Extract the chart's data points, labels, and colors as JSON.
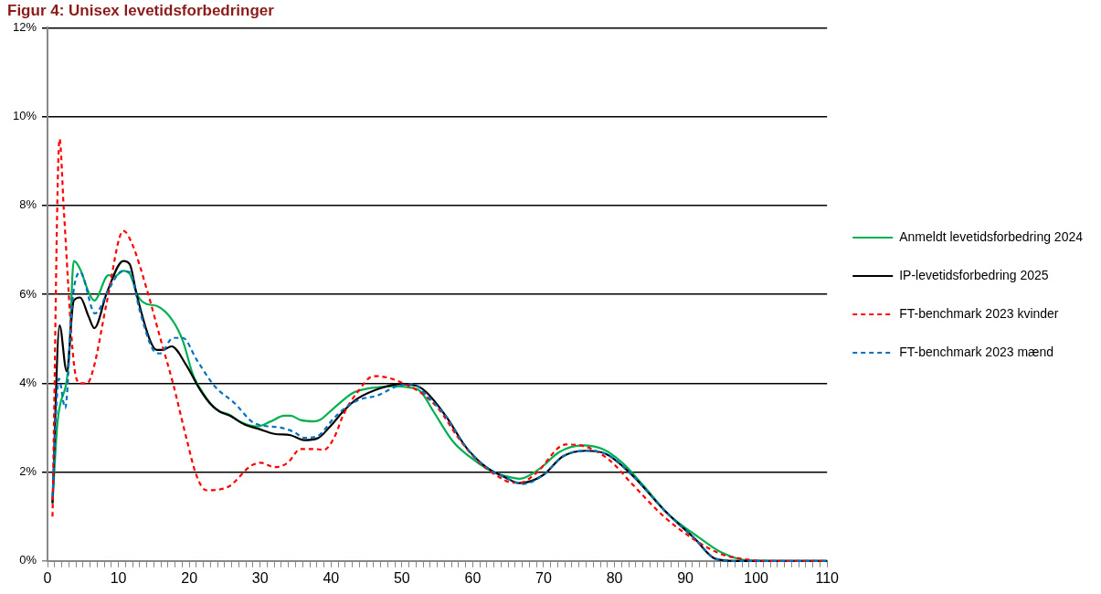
{
  "chart_data": {
    "type": "line",
    "title": "Figur 4: Unisex levetidsforbedringer",
    "xlim": [
      0,
      110
    ],
    "ylim": [
      0,
      12
    ],
    "yticks": [
      {
        "value": 0,
        "label": "0%"
      },
      {
        "value": 2,
        "label": "2%"
      },
      {
        "value": 4,
        "label": "4%"
      },
      {
        "value": 6,
        "label": "6%"
      },
      {
        "value": 8,
        "label": "8%"
      },
      {
        "value": 10,
        "label": "10%"
      },
      {
        "value": 12,
        "label": "12%"
      }
    ],
    "xticks": [
      0,
      {
        "value": 1,
        "label": null
      },
      {
        "value": 2,
        "label": null
      },
      {
        "value": 3,
        "label": null
      },
      {
        "value": 4,
        "label": null
      },
      {
        "value": 5,
        "label": null
      },
      {
        "value": 6,
        "label": null
      },
      {
        "value": 7,
        "label": null
      },
      {
        "value": 8,
        "label": null
      },
      {
        "value": 9,
        "label": null
      },
      10,
      {
        "value": 11,
        "label": null
      },
      {
        "value": 12,
        "label": null
      },
      {
        "value": 13,
        "label": null
      },
      {
        "value": 14,
        "label": null
      },
      {
        "value": 15,
        "label": null
      },
      {
        "value": 16,
        "label": null
      },
      {
        "value": 17,
        "label": null
      },
      {
        "value": 18,
        "label": null
      },
      {
        "value": 19,
        "label": null
      },
      20,
      {
        "value": 21,
        "label": null
      },
      {
        "value": 22,
        "label": null
      },
      {
        "value": 23,
        "label": null
      },
      {
        "value": 24,
        "label": null
      },
      {
        "value": 25,
        "label": null
      },
      {
        "value": 26,
        "label": null
      },
      {
        "value": 27,
        "label": null
      },
      {
        "value": 28,
        "label": null
      },
      {
        "value": 29,
        "label": null
      },
      30,
      {
        "value": 31,
        "label": null
      },
      {
        "value": 32,
        "label": null
      },
      {
        "value": 33,
        "label": null
      },
      {
        "value": 34,
        "label": null
      },
      {
        "value": 35,
        "label": null
      },
      {
        "value": 36,
        "label": null
      },
      {
        "value": 37,
        "label": null
      },
      {
        "value": 38,
        "label": null
      },
      {
        "value": 39,
        "label": null
      },
      40,
      {
        "value": 41,
        "label": null
      },
      {
        "value": 42,
        "label": null
      },
      {
        "value": 43,
        "label": null
      },
      {
        "value": 44,
        "label": null
      },
      {
        "value": 45,
        "label": null
      },
      {
        "value": 46,
        "label": null
      },
      {
        "value": 47,
        "label": null
      },
      {
        "value": 48,
        "label": null
      },
      {
        "value": 49,
        "label": null
      },
      50,
      {
        "value": 51,
        "label": null
      },
      {
        "value": 52,
        "label": null
      },
      {
        "value": 53,
        "label": null
      },
      {
        "value": 54,
        "label": null
      },
      {
        "value": 55,
        "label": null
      },
      {
        "value": 56,
        "label": null
      },
      {
        "value": 57,
        "label": null
      },
      {
        "value": 58,
        "label": null
      },
      {
        "value": 59,
        "label": null
      },
      60,
      {
        "value": 61,
        "label": null
      },
      {
        "value": 62,
        "label": null
      },
      {
        "value": 63,
        "label": null
      },
      {
        "value": 64,
        "label": null
      },
      {
        "value": 65,
        "label": null
      },
      {
        "value": 66,
        "label": null
      },
      {
        "value": 67,
        "label": null
      },
      {
        "value": 68,
        "label": null
      },
      {
        "value": 69,
        "label": null
      },
      70,
      {
        "value": 71,
        "label": null
      },
      {
        "value": 72,
        "label": null
      },
      {
        "value": 73,
        "label": null
      },
      {
        "value": 74,
        "label": null
      },
      {
        "value": 75,
        "label": null
      },
      {
        "value": 76,
        "label": null
      },
      {
        "value": 77,
        "label": null
      },
      {
        "value": 78,
        "label": null
      },
      {
        "value": 79,
        "label": null
      },
      80,
      {
        "value": 81,
        "label": null
      },
      {
        "value": 82,
        "label": null
      },
      {
        "value": 83,
        "label": null
      },
      {
        "value": 84,
        "label": null
      },
      {
        "value": 85,
        "label": null
      },
      {
        "value": 86,
        "label": null
      },
      {
        "value": 87,
        "label": null
      },
      {
        "value": 88,
        "label": null
      },
      {
        "value": 89,
        "label": null
      },
      90,
      {
        "value": 91,
        "label": null
      },
      {
        "value": 92,
        "label": null
      },
      {
        "value": 93,
        "label": null
      },
      {
        "value": 94,
        "label": null
      },
      {
        "value": 95,
        "label": null
      },
      {
        "value": 96,
        "label": null
      },
      {
        "value": 97,
        "label": null
      },
      {
        "value": 98,
        "label": null
      },
      {
        "value": 99,
        "label": null
      },
      100,
      {
        "value": 101,
        "label": null
      },
      {
        "value": 102,
        "label": null
      },
      {
        "value": 103,
        "label": null
      },
      {
        "value": 104,
        "label": null
      },
      {
        "value": 105,
        "label": null
      },
      {
        "value": 106,
        "label": null
      },
      {
        "value": 107,
        "label": null
      },
      {
        "value": 108,
        "label": null
      },
      {
        "value": 109,
        "label": null
      },
      110
    ],
    "grid": "y",
    "legend": "right",
    "marker": "none",
    "series": [
      {
        "name": "Anmeldt levetidsforbedring 2024",
        "color": "#00b050",
        "line_style": "solid",
        "x": [
          0.7,
          1.4,
          3,
          3.7,
          4.6,
          5.8,
          6.6,
          8.6,
          9.5,
          10.7,
          11.6,
          12.8,
          14,
          15.4,
          17.7,
          19.1,
          20.5,
          21.9,
          23.8,
          25.7,
          27.1,
          29.6,
          31.5,
          33.4,
          34.3,
          35.7,
          37.6,
          38.5,
          40.4,
          43.2,
          45.6,
          48.8,
          50.7,
          52.6,
          54.4,
          57.2,
          60.1,
          62.9,
          65.7,
          66.6,
          69.4,
          72.2,
          75.5,
          78.3,
          81.1,
          83.9,
          87.7,
          91.9,
          95.1,
          98.9,
          105,
          110
        ],
        "values": [
          1.3,
          3.1,
          4.5,
          6.75,
          6.57,
          6.05,
          5.86,
          6.43,
          6.41,
          6.53,
          6.46,
          5.95,
          5.78,
          5.74,
          5.4,
          4.95,
          4.2,
          3.79,
          3.41,
          3.29,
          3.14,
          3.03,
          3.14,
          3.27,
          3.27,
          3.17,
          3.14,
          3.18,
          3.44,
          3.79,
          3.89,
          3.93,
          3.91,
          3.82,
          3.38,
          2.69,
          2.28,
          2,
          1.87,
          1.85,
          2.07,
          2.45,
          2.6,
          2.52,
          2.21,
          1.73,
          1.04,
          0.53,
          0.19,
          0.01,
          0,
          0
        ]
      },
      {
        "name": "IP-levetidsforbedring 2025",
        "color": "#000000",
        "line_style": "solid",
        "x": [
          0.7,
          1.7,
          2.7,
          3.7,
          4.6,
          5.8,
          6.6,
          8.4,
          10.7,
          11.6,
          12.6,
          14.5,
          15.4,
          16.3,
          17.5,
          19.6,
          21.5,
          22.9,
          24.3,
          25.7,
          27.8,
          29.6,
          32,
          34.3,
          36.2,
          38.1,
          39.9,
          41.8,
          43.7,
          47,
          49.8,
          52.1,
          53.5,
          56.3,
          59.1,
          61.9,
          64.7,
          66.6,
          69.9,
          72.7,
          75.9,
          78.8,
          82.5,
          87.2,
          91.4,
          94.2,
          97,
          105,
          110
        ],
        "values": [
          1.3,
          5.3,
          4.27,
          5.86,
          5.93,
          5.5,
          5.24,
          6.05,
          6.75,
          6.68,
          5.98,
          4.95,
          4.75,
          4.75,
          4.83,
          4.4,
          3.86,
          3.55,
          3.36,
          3.27,
          3.07,
          2.98,
          2.86,
          2.83,
          2.72,
          2.76,
          3.03,
          3.38,
          3.65,
          3.89,
          3.98,
          3.94,
          3.79,
          3.24,
          2.55,
          2.11,
          1.87,
          1.75,
          1.93,
          2.35,
          2.48,
          2.41,
          1.93,
          1.11,
          0.49,
          0.05,
          0,
          0,
          0
        ]
      },
      {
        "name": "FT-benchmark 2023 kvinder",
        "color": "#ff0000",
        "line_style": "dashed",
        "x": [
          0.7,
          1.7,
          2.3,
          3.7,
          4.6,
          5.6,
          6.5,
          8.4,
          10.7,
          11.9,
          14,
          15.9,
          17.7,
          19.6,
          21,
          22.4,
          25.4,
          28.7,
          30.1,
          32,
          33.9,
          35.7,
          37.6,
          39,
          40.4,
          41.8,
          43.7,
          46,
          47.9,
          50.7,
          53,
          55.4,
          57.7,
          60.5,
          63.3,
          65.7,
          66.6,
          68.9,
          73.1,
          75.5,
          79.2,
          82.5,
          86.7,
          90.5,
          95.1,
          97.9,
          101.2,
          105,
          110
        ],
        "values": [
          1,
          9.5,
          7.9,
          4.47,
          4,
          4,
          4.34,
          5.85,
          7.43,
          7.15,
          6.12,
          5.02,
          4,
          2.76,
          1.93,
          1.59,
          1.66,
          2.14,
          2.21,
          2.11,
          2.21,
          2.52,
          2.52,
          2.5,
          2.76,
          3.31,
          3.79,
          4.16,
          4.13,
          3.96,
          3.75,
          3.38,
          2.83,
          2.28,
          1.93,
          1.76,
          1.76,
          1.97,
          2.62,
          2.59,
          2.28,
          1.73,
          1.04,
          0.56,
          0.15,
          0.05,
          0,
          0,
          0
        ]
      },
      {
        "name": "FT-benchmark 2023 mænd",
        "color": "#0070c0",
        "line_style": "dashed",
        "x": [
          0.7,
          1.6,
          2.5,
          3.5,
          4.6,
          6.7,
          8.8,
          10.5,
          11.6,
          13,
          14.9,
          15.9,
          17.7,
          19.1,
          21,
          23.6,
          26.4,
          29.2,
          32.9,
          34.8,
          36.2,
          38.1,
          40.4,
          42.3,
          44.2,
          46.5,
          49.3,
          51.6,
          53.5,
          56.3,
          59.1,
          61.9,
          64.7,
          67.1,
          69.9,
          72.7,
          75.9,
          78.8,
          82.5,
          87.2,
          91.4,
          94.2,
          97,
          105,
          110
        ],
        "values": [
          1.45,
          4.1,
          3.44,
          5.85,
          6.5,
          5.57,
          6.16,
          6.52,
          6.5,
          5.64,
          4.75,
          4.67,
          5.02,
          5.02,
          4.54,
          3.93,
          3.55,
          3.1,
          3,
          2.9,
          2.77,
          2.81,
          3.21,
          3.48,
          3.64,
          3.72,
          3.93,
          3.98,
          3.72,
          3.24,
          2.55,
          2.11,
          1.87,
          1.73,
          1.93,
          2.35,
          2.48,
          2.41,
          1.93,
          1.11,
          0.49,
          0.05,
          0,
          0,
          0
        ]
      }
    ]
  }
}
